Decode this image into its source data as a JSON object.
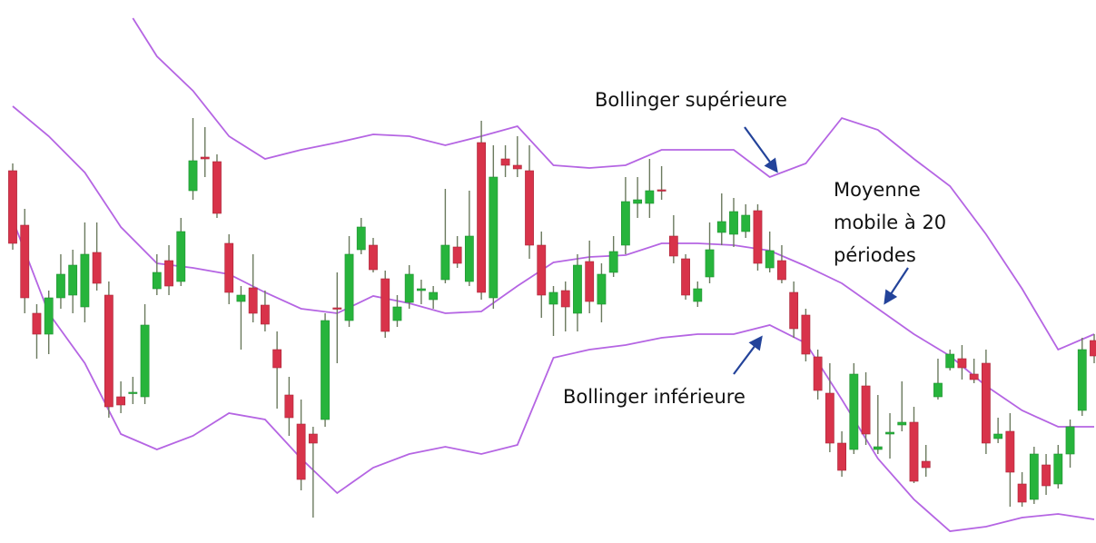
{
  "chart_data": {
    "type": "candlestick",
    "ylim": [
      0,
      600
    ],
    "up_color": "#27b43c",
    "down_color": "#d8334a",
    "wick_color": "#6b7a5e",
    "open": [
      412,
      352,
      255,
      232,
      272,
      275,
      262,
      322,
      275,
      163,
      167,
      163,
      282,
      313,
      290,
      390,
      427,
      422,
      332,
      268,
      283,
      264,
      215,
      165,
      133,
      122,
      138,
      261,
      247,
      325,
      330,
      293,
      247,
      267,
      280,
      270,
      292,
      328,
      290,
      443,
      272,
      425,
      418,
      412,
      330,
      265,
      280,
      255,
      312,
      265,
      300,
      330,
      376,
      376,
      391,
      340,
      315,
      268,
      295,
      344,
      342,
      345,
      368,
      305,
      313,
      278,
      253,
      207,
      167,
      112,
      105,
      175,
      105,
      122,
      132,
      135,
      92,
      163,
      195,
      205,
      188,
      200,
      117,
      125,
      67,
      50,
      88,
      67,
      100,
      148,
      225
    ],
    "high": [
      420,
      370,
      265,
      280,
      320,
      325,
      355,
      355,
      290,
      180,
      185,
      265,
      320,
      330,
      360,
      470,
      460,
      430,
      342,
      285,
      320,
      280,
      235,
      185,
      160,
      130,
      255,
      300,
      340,
      360,
      338,
      302,
      275,
      308,
      292,
      285,
      392,
      340,
      390,
      467,
      440,
      440,
      450,
      440,
      345,
      285,
      290,
      320,
      335,
      310,
      340,
      405,
      405,
      425,
      417,
      363,
      320,
      290,
      355,
      387,
      382,
      375,
      375,
      345,
      330,
      290,
      260,
      215,
      200,
      125,
      200,
      190,
      165,
      145,
      180,
      152,
      110,
      205,
      215,
      220,
      205,
      215,
      140,
      145,
      80,
      108,
      100,
      110,
      138,
      228,
      232
    ],
    "low": [
      325,
      255,
      205,
      210,
      260,
      255,
      245,
      280,
      140,
      145,
      155,
      155,
      275,
      275,
      285,
      380,
      405,
      360,
      265,
      215,
      245,
      235,
      150,
      120,
      60,
      30,
      130,
      200,
      240,
      320,
      300,
      228,
      240,
      260,
      265,
      260,
      288,
      305,
      285,
      270,
      260,
      405,
      405,
      315,
      250,
      230,
      235,
      235,
      255,
      245,
      295,
      320,
      360,
      360,
      380,
      310,
      270,
      262,
      288,
      330,
      328,
      338,
      302,
      300,
      288,
      228,
      202,
      160,
      102,
      75,
      100,
      110,
      100,
      95,
      125,
      68,
      75,
      160,
      192,
      182,
      178,
      100,
      112,
      42,
      42,
      45,
      55,
      62,
      85,
      142,
      200
    ],
    "close": [
      332,
      272,
      232,
      272,
      298,
      308,
      320,
      288,
      152,
      154,
      168,
      242,
      300,
      285,
      345,
      423,
      425,
      365,
      278,
      275,
      255,
      243,
      195,
      140,
      72,
      112,
      247,
      260,
      320,
      350,
      303,
      235,
      262,
      298,
      282,
      278,
      330,
      310,
      340,
      278,
      405,
      418,
      414,
      330,
      275,
      278,
      262,
      308,
      268,
      298,
      323,
      378,
      380,
      390,
      390,
      318,
      275,
      282,
      325,
      356,
      367,
      363,
      310,
      324,
      292,
      238,
      210,
      170,
      112,
      82,
      188,
      122,
      108,
      124,
      135,
      70,
      85,
      178,
      210,
      195,
      182,
      112,
      122,
      80,
      47,
      100,
      65,
      100,
      130,
      215,
      208
    ],
    "bands": [
      {
        "color": "#b565e3",
        "x": [
          10,
          12,
          15,
          18,
          21,
          24,
          27,
          30,
          33,
          36,
          39,
          42,
          45,
          48,
          51,
          54,
          57,
          60,
          63,
          66,
          69,
          72,
          75,
          78,
          81,
          84,
          87,
          90
        ],
        "values": [
          580,
          538,
          500,
          450,
          425,
          435,
          443,
          452,
          450,
          440,
          450,
          461,
          418,
          415,
          418,
          435,
          435,
          435,
          405,
          420,
          470,
          457,
          425,
          395,
          342,
          282,
          215,
          232
        ]
      },
      {
        "color": "#b565e3",
        "x": [
          0,
          3,
          6,
          9,
          12,
          15,
          18,
          21,
          24,
          27,
          30,
          33,
          36,
          39,
          42,
          45,
          48,
          51,
          54,
          57,
          60,
          63,
          66,
          69,
          72,
          75,
          78,
          81,
          84,
          87,
          90
        ],
        "values": [
          483,
          450,
          410,
          350,
          310,
          305,
          298,
          278,
          260,
          255,
          274,
          266,
          255,
          257,
          285,
          311,
          317,
          319,
          332,
          332,
          330,
          324,
          307,
          288,
          260,
          232,
          208,
          175,
          148,
          130,
          130
        ]
      },
      {
        "color": "#b565e3",
        "x": [
          0,
          3,
          6,
          9,
          12,
          15,
          18,
          21,
          24,
          27,
          30,
          33,
          36,
          39,
          42,
          45,
          48,
          51,
          54,
          57,
          60,
          63,
          66,
          69,
          72,
          75,
          78,
          81,
          84,
          87,
          90
        ],
        "values": [
          358,
          255,
          200,
          122,
          105,
          120,
          145,
          138,
          95,
          57,
          85,
          100,
          108,
          100,
          110,
          206,
          215,
          220,
          228,
          232,
          232,
          242,
          222,
          160,
          95,
          50,
          15,
          20,
          30,
          34,
          28
        ]
      }
    ],
    "annotations": [
      "Bollinger supérieure",
      [
        "Moyenne",
        "mobile à 20",
        "périodes"
      ],
      "Bollinger inférieure"
    ],
    "arrow_color": "#23439a"
  }
}
